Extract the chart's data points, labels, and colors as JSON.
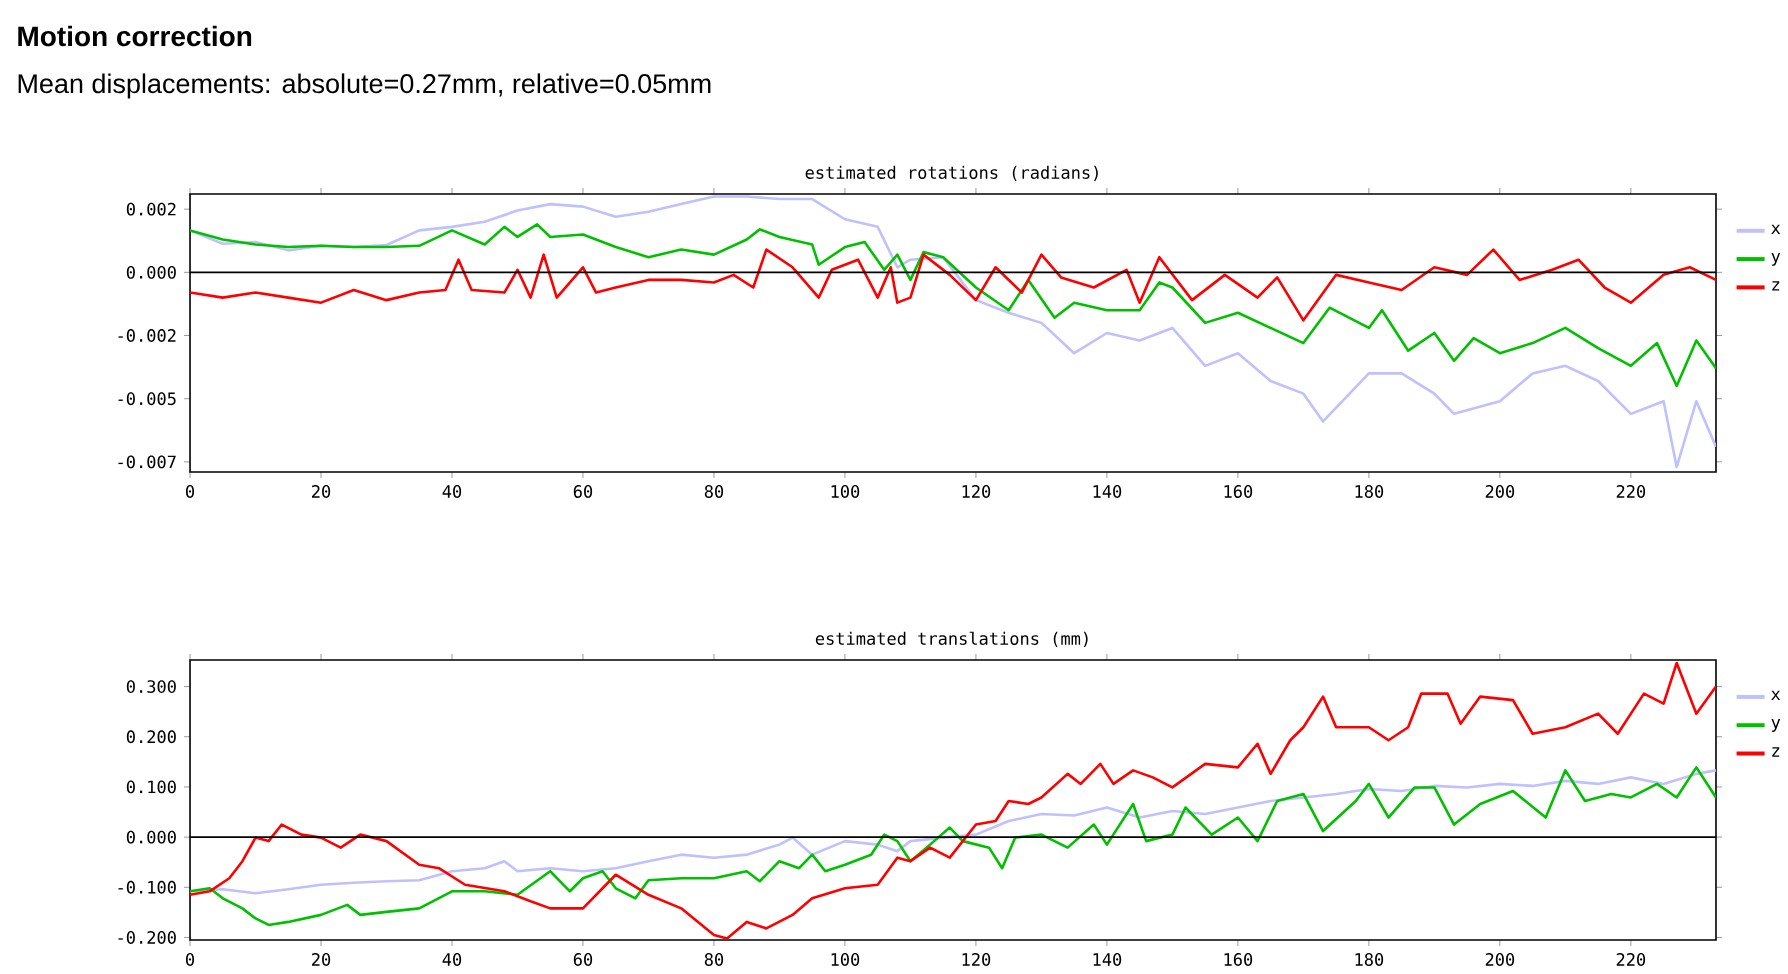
{
  "chart_data": [
    {
      "type": "line",
      "title": "estimated rotations (radians)",
      "annotations": [
        "**Motion correction**",
        "Mean displacements: absolute=0.27mm, relative=0.05mm"
      ],
      "xlim": [
        0,
        233
      ],
      "xticks": [
        0,
        20,
        40,
        60,
        80,
        100,
        120,
        140,
        160,
        180,
        200,
        220
      ],
      "ylim": [
        -0.0079,
        0.0031
      ],
      "yticks": [
        {
          "value": -0.0075,
          "label": "-0.007"
        },
        {
          "value": -0.005,
          "label": "-0.005"
        },
        {
          "value": -0.0025,
          "label": "-0.002"
        },
        {
          "value": 0,
          "label": "0.000"
        },
        {
          "value": 0.0025,
          "label": "0.002"
        }
      ],
      "grid": false,
      "legend": "right",
      "marker": "none",
      "line_style": "solid",
      "ref_lines": [
        {
          "axis": "y",
          "value": 0,
          "color": "#000000"
        }
      ],
      "series": [
        {
          "name": "x",
          "color": "#c0c0ff",
          "x": [
            0,
            5,
            10,
            15,
            20,
            25,
            30,
            35,
            40,
            45,
            50,
            55,
            60,
            65,
            70,
            75,
            80,
            85,
            90,
            95,
            100,
            105,
            108,
            110,
            115,
            120,
            125,
            130,
            135,
            140,
            145,
            150,
            155,
            160,
            165,
            170,
            173,
            180,
            185,
            190,
            193,
            200,
            205,
            210,
            215,
            220,
            225,
            227,
            230,
            233
          ],
          "values": [
            0.00166,
            0.00113,
            0.0012,
            0.00087,
            0.00105,
            0.001,
            0.00108,
            0.00166,
            0.0018,
            0.002,
            0.00245,
            0.0027,
            0.0026,
            0.0022,
            0.0024,
            0.0027,
            0.003,
            0.003,
            0.0029,
            0.0029,
            0.0021,
            0.0018,
            0.0002,
            0.0005,
            0.0006,
            -0.0011,
            -0.0016,
            -0.002,
            -0.0032,
            -0.0024,
            -0.0027,
            -0.0022,
            -0.0037,
            -0.0032,
            -0.0043,
            -0.0048,
            -0.0059,
            -0.004,
            -0.004,
            -0.0048,
            -0.0056,
            -0.0051,
            -0.004,
            -0.0037,
            -0.0043,
            -0.0056,
            -0.0051,
            -0.0077,
            -0.0051,
            -0.0069
          ]
        },
        {
          "name": "y",
          "color": "#00c000",
          "x": [
            0,
            5,
            10,
            15,
            20,
            25,
            30,
            35,
            40,
            45,
            48,
            50,
            53,
            55,
            60,
            65,
            70,
            75,
            80,
            85,
            87,
            90,
            95,
            96,
            100,
            103,
            106,
            108,
            110,
            112,
            115,
            120,
            125,
            128,
            132,
            135,
            140,
            145,
            148,
            150,
            155,
            160,
            165,
            170,
            174,
            180,
            182,
            186,
            190,
            193,
            196,
            200,
            205,
            210,
            215,
            220,
            224,
            227,
            230,
            233
          ],
          "values": [
            0.00166,
            0.0013,
            0.0011,
            0.001,
            0.00105,
            0.001,
            0.001,
            0.00105,
            0.00166,
            0.0011,
            0.0018,
            0.0014,
            0.0019,
            0.0014,
            0.0015,
            0.001,
            0.0006,
            0.0009,
            0.0007,
            0.0013,
            0.0017,
            0.0014,
            0.0011,
            0.0003,
            0.001,
            0.0012,
            0.0001,
            0.0007,
            -0.0003,
            0.0008,
            0.0006,
            -0.0006,
            -0.0015,
            -0.0003,
            -0.0018,
            -0.0012,
            -0.0015,
            -0.0015,
            -0.0004,
            -0.0006,
            -0.002,
            -0.0016,
            -0.0022,
            -0.0028,
            -0.0014,
            -0.0022,
            -0.0015,
            -0.0031,
            -0.0024,
            -0.0035,
            -0.0026,
            -0.0032,
            -0.0028,
            -0.0022,
            -0.003,
            -0.0037,
            -0.0028,
            -0.0045,
            -0.0027,
            -0.0038
          ]
        },
        {
          "name": "z",
          "color": "#ff0000",
          "x": [
            0,
            5,
            10,
            15,
            20,
            25,
            30,
            35,
            39,
            41,
            43,
            48,
            50,
            52,
            54,
            56,
            60,
            62,
            65,
            70,
            75,
            80,
            83,
            86,
            88,
            92,
            96,
            98,
            102,
            105,
            107,
            108,
            110,
            112,
            116,
            120,
            123,
            127,
            130,
            133,
            138,
            143,
            145,
            148,
            153,
            158,
            163,
            166,
            170,
            175,
            180,
            185,
            190,
            195,
            199,
            203,
            208,
            212,
            216,
            220,
            225,
            229,
            233
          ],
          "values": [
            -0.0008,
            -0.001,
            -0.0008,
            -0.001,
            -0.0012,
            -0.0007,
            -0.0011,
            -0.0008,
            -0.0007,
            0.0005,
            -0.0007,
            -0.0008,
            0.0001,
            -0.001,
            0.0007,
            -0.001,
            0.0002,
            -0.0008,
            -0.0006,
            -0.0003,
            -0.0003,
            -0.0004,
            -0.0001,
            -0.0006,
            0.0009,
            0.0002,
            -0.001,
            0.0001,
            0.0005,
            -0.001,
            0.0002,
            -0.0012,
            -0.001,
            0.0007,
            -0.0001,
            -0.0011,
            0.0002,
            -0.0008,
            0.0007,
            -0.0002,
            -0.0006,
            0.0001,
            -0.0012,
            0.0006,
            -0.0011,
            -0.0001,
            -0.001,
            -0.0002,
            -0.0019,
            -0.0001,
            -0.0004,
            -0.0007,
            0.0002,
            -0.0001,
            0.0009,
            -0.0003,
            0.0001,
            0.0005,
            -0.0006,
            -0.0012,
            -0.0001,
            0.0002,
            -0.0003
          ]
        }
      ]
    },
    {
      "type": "line",
      "title": "estimated translations (mm)",
      "xlim": [
        0,
        233
      ],
      "xticks": [
        0,
        20,
        40,
        60,
        80,
        100,
        120,
        140,
        160,
        180,
        200,
        220
      ],
      "ylim": [
        -0.205,
        0.353
      ],
      "yticks": [
        {
          "value": -0.2,
          "label": "-0.200"
        },
        {
          "value": -0.1,
          "label": "-0.100"
        },
        {
          "value": 0,
          "label": "0.000"
        },
        {
          "value": 0.1,
          "label": "0.100"
        },
        {
          "value": 0.2,
          "label": "0.200"
        },
        {
          "value": 0.3,
          "label": "0.300"
        }
      ],
      "grid": false,
      "legend": "right",
      "marker": "none",
      "line_style": "solid",
      "ref_lines": [
        {
          "axis": "y",
          "value": 0,
          "color": "#000000"
        }
      ],
      "series": [
        {
          "name": "x",
          "color": "#c0c0ff",
          "x": [
            0,
            5,
            10,
            15,
            20,
            25,
            30,
            35,
            40,
            45,
            48,
            50,
            55,
            60,
            65,
            70,
            75,
            80,
            85,
            90,
            92,
            95,
            100,
            105,
            108,
            110,
            115,
            120,
            125,
            130,
            135,
            140,
            145,
            150,
            155,
            160,
            165,
            170,
            175,
            180,
            185,
            190,
            195,
            200,
            205,
            210,
            215,
            220,
            225,
            230,
            233
          ],
          "values": [
            -0.108,
            -0.104,
            -0.112,
            -0.104,
            -0.095,
            -0.091,
            -0.088,
            -0.086,
            -0.068,
            -0.062,
            -0.048,
            -0.068,
            -0.062,
            -0.068,
            -0.062,
            -0.048,
            -0.035,
            -0.041,
            -0.035,
            -0.015,
            -0.001,
            -0.035,
            -0.008,
            -0.015,
            -0.028,
            -0.008,
            -0.001,
            0.005,
            0.032,
            0.046,
            0.043,
            0.059,
            0.039,
            0.052,
            0.046,
            0.059,
            0.072,
            0.079,
            0.086,
            0.096,
            0.092,
            0.102,
            0.099,
            0.106,
            0.102,
            0.112,
            0.106,
            0.119,
            0.106,
            0.126,
            0.133
          ]
        },
        {
          "name": "y",
          "color": "#00c000",
          "x": [
            0,
            3,
            5,
            8,
            10,
            12,
            15,
            20,
            24,
            26,
            30,
            35,
            40,
            45,
            50,
            55,
            58,
            60,
            63,
            65,
            68,
            70,
            75,
            80,
            85,
            87,
            90,
            93,
            95,
            97,
            100,
            104,
            106,
            108,
            110,
            113,
            116,
            118,
            122,
            124,
            126,
            130,
            134,
            138,
            140,
            144,
            146,
            150,
            152,
            156,
            160,
            163,
            166,
            170,
            173,
            178,
            180,
            183,
            187,
            190,
            193,
            197,
            202,
            207,
            210,
            213,
            217,
            220,
            224,
            227,
            230,
            233
          ],
          "values": [
            -0.108,
            -0.102,
            -0.122,
            -0.142,
            -0.162,
            -0.175,
            -0.169,
            -0.155,
            -0.135,
            -0.155,
            -0.149,
            -0.142,
            -0.108,
            -0.108,
            -0.115,
            -0.068,
            -0.108,
            -0.082,
            -0.068,
            -0.102,
            -0.122,
            -0.086,
            -0.082,
            -0.082,
            -0.068,
            -0.088,
            -0.048,
            -0.062,
            -0.035,
            -0.068,
            -0.055,
            -0.035,
            0.005,
            -0.008,
            -0.048,
            -0.015,
            0.019,
            -0.008,
            -0.021,
            -0.062,
            -0.001,
            0.005,
            -0.021,
            0.025,
            -0.015,
            0.066,
            -0.008,
            0.005,
            0.059,
            0.005,
            0.039,
            -0.008,
            0.072,
            0.086,
            0.012,
            0.072,
            0.106,
            0.039,
            0.099,
            0.099,
            0.025,
            0.066,
            0.092,
            0.039,
            0.133,
            0.072,
            0.086,
            0.079,
            0.106,
            0.079,
            0.139,
            0.079
          ]
        },
        {
          "name": "z",
          "color": "#ff0000",
          "x": [
            0,
            3,
            6,
            8,
            10,
            12,
            14,
            17,
            20,
            23,
            26,
            30,
            35,
            38,
            42,
            48,
            52,
            55,
            60,
            65,
            70,
            75,
            80,
            82,
            85,
            88,
            92,
            95,
            100,
            105,
            108,
            110,
            113,
            116,
            120,
            123,
            125,
            128,
            130,
            134,
            136,
            139,
            141,
            144,
            147,
            150,
            155,
            160,
            163,
            165,
            168,
            170,
            173,
            175,
            180,
            183,
            186,
            188,
            192,
            194,
            197,
            202,
            205,
            210,
            215,
            218,
            222,
            225,
            227,
            230,
            233
          ],
          "values": [
            -0.115,
            -0.108,
            -0.082,
            -0.048,
            -0.001,
            -0.008,
            0.025,
            0.005,
            -0.001,
            -0.021,
            0.005,
            -0.008,
            -0.055,
            -0.062,
            -0.095,
            -0.108,
            -0.128,
            -0.142,
            -0.142,
            -0.075,
            -0.115,
            -0.142,
            -0.195,
            -0.202,
            -0.169,
            -0.182,
            -0.155,
            -0.122,
            -0.102,
            -0.095,
            -0.041,
            -0.048,
            -0.021,
            -0.041,
            0.025,
            0.032,
            0.072,
            0.066,
            0.079,
            0.126,
            0.106,
            0.146,
            0.106,
            0.133,
            0.119,
            0.099,
            0.146,
            0.139,
            0.186,
            0.126,
            0.193,
            0.219,
            0.28,
            0.219,
            0.219,
            0.193,
            0.219,
            0.286,
            0.286,
            0.226,
            0.28,
            0.273,
            0.206,
            0.219,
            0.246,
            0.206,
            0.286,
            0.266,
            0.347,
            0.246,
            0.3
          ]
        }
      ]
    }
  ]
}
